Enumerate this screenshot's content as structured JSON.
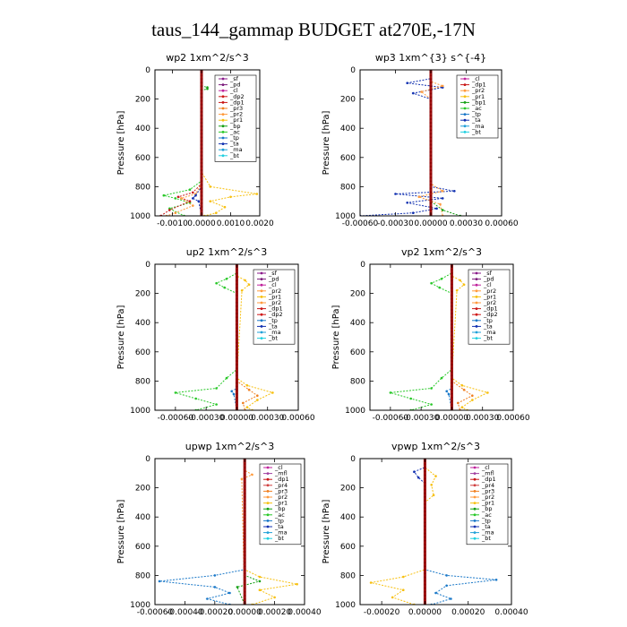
{
  "figure": {
    "title": "taus_144_gammap  BUDGET at270E,-17N"
  },
  "colors": {
    "sf": "#8a1a8a",
    "pd": "#7b1b7b",
    "cl": "#c0229c",
    "dp2": "#d01818",
    "dp1": "#c81616",
    "pr3": "#f07f20",
    "pr2": "#ff9a3c",
    "pr1": "#f7c010",
    "bp": "#14a014",
    "ac": "#28c828",
    "tp": "#1a78c8",
    "ta": "#1030b0",
    "ma": "#20a0d8",
    "bt": "#20d0e0",
    "mfl": "#a040a0",
    "pr4": "#d04040",
    "tot": "#8b0000"
  },
  "chart_data": [
    {
      "type": "line",
      "title": "wp2   1xm^2/s^3",
      "ylabel": "Pressure  [hPa]",
      "xlim": [
        -0.0016,
        0.002
      ],
      "ylim": [
        1000,
        0
      ],
      "xticks": [
        -0.001,
        0,
        0.001,
        0.002
      ],
      "xtick_labels": [
        "-0.0010",
        "0.0000",
        "0.0010",
        "0.0020"
      ],
      "yticks": [
        0,
        200,
        400,
        600,
        800,
        1000
      ],
      "ytick_labels": [
        "0",
        "200",
        "400",
        "600",
        "800",
        "1000"
      ],
      "legend_position": "top-right",
      "legend": [
        "_sf",
        "_pd",
        "_cl",
        "_dp2",
        "_dp1",
        "_pr3",
        "_pr2",
        "_pr1",
        "_bp",
        "_ac",
        "_tp",
        "_ta",
        "_ma",
        "_bt"
      ],
      "series": [
        {
          "key": "pr1",
          "pressure": [
            0,
            700,
            800,
            850,
            870,
            900,
            940,
            980,
            1000
          ],
          "values": [
            0,
            0,
            0.0003,
            0.0019,
            0.001,
            0.0003,
            0.0008,
            0.0005,
            0.0001
          ]
        },
        {
          "key": "ac",
          "pressure": [
            0,
            760,
            820,
            860,
            880,
            910,
            950,
            1000
          ],
          "values": [
            0,
            0,
            -0.0004,
            -0.0013,
            -0.0009,
            -0.0004,
            -0.0011,
            -0.0006
          ]
        },
        {
          "key": "dp1",
          "pressure": [
            0,
            780,
            840,
            870,
            900,
            960,
            1000
          ],
          "values": [
            0,
            0,
            -0.0003,
            -0.0008,
            -0.0004,
            -0.0011,
            -0.0014
          ]
        },
        {
          "key": "pr2",
          "pressure": [
            0,
            780,
            850,
            880,
            930,
            980,
            1000
          ],
          "values": [
            0,
            0,
            -0.0002,
            -0.0007,
            -0.0003,
            -0.0009,
            -0.0012
          ]
        },
        {
          "key": "ta",
          "pressure": [
            0,
            800,
            860,
            880,
            900,
            1000
          ],
          "values": [
            0,
            0,
            -0.0002,
            -0.0003,
            -0.0001,
            0
          ]
        },
        {
          "key": "bp",
          "pressure": [
            0,
            110,
            120,
            130,
            140,
            1000
          ],
          "values": [
            0,
            0,
            0.0002,
            0.0002,
            0,
            0
          ]
        },
        {
          "key": "tot",
          "pressure": [
            0,
            1000
          ],
          "values": [
            0,
            0
          ]
        }
      ]
    },
    {
      "type": "line",
      "title": "wp3   1xm^{3} s^{-4}",
      "ylabel": "Pressure  [hPa]",
      "xlim": [
        -0.0006,
        0.0006
      ],
      "ylim": [
        1000,
        0
      ],
      "xticks": [
        -0.0006,
        -0.0003,
        0,
        0.0003,
        0.0006
      ],
      "xtick_labels": [
        "-0.00060",
        "-0.00030",
        "0.00000",
        "0.00030",
        "0.00060"
      ],
      "yticks": [
        0,
        200,
        400,
        600,
        800,
        1000
      ],
      "ytick_labels": [
        "0",
        "200",
        "400",
        "600",
        "800",
        "1000"
      ],
      "legend_position": "top-right",
      "legend": [
        "_cl",
        "_dp1",
        "_pr2",
        "_pr1",
        "_bp1",
        "_ac",
        "_tp",
        "_ta",
        "_ma",
        "_bt"
      ],
      "series": [
        {
          "key": "ta",
          "pressure": [
            0,
            60,
            90,
            120,
            160,
            200,
            800,
            830,
            850,
            880,
            910,
            950,
            980,
            1000
          ],
          "values": [
            0,
            0,
            -0.0002,
            0.0001,
            -0.00015,
            0,
            0,
            0.0002,
            -0.0003,
            0.0001,
            -0.0002,
            5e-05,
            -0.00015,
            -0.0006
          ]
        },
        {
          "key": "pr2",
          "pressure": [
            0,
            80,
            110,
            150,
            200,
            780,
            830,
            870,
            920,
            1000
          ],
          "values": [
            0,
            0,
            0.0001,
            -8e-05,
            0,
            0,
            0.0001,
            -0.0001,
            8e-05,
            0.0001
          ]
        },
        {
          "key": "bp",
          "pressure": [
            0,
            900,
            960,
            1000
          ],
          "values": [
            0,
            0,
            0.0001,
            0.00025
          ]
        },
        {
          "key": "tot",
          "pressure": [
            0,
            1000
          ],
          "values": [
            0,
            0
          ]
        }
      ]
    },
    {
      "type": "line",
      "title": "up2   1xm^2/s^3",
      "ylabel": "Pressure  [hPa]",
      "xlim": [
        -0.0008,
        0.0006
      ],
      "ylim": [
        1000,
        0
      ],
      "xticks": [
        -0.0006,
        -0.0003,
        0,
        0.0003,
        0.0006
      ],
      "xtick_labels": [
        "-0.00060",
        "-0.00030",
        "0.00000",
        "0.00030",
        "0.00060"
      ],
      "yticks": [
        0,
        200,
        400,
        600,
        800,
        1000
      ],
      "ytick_labels": [
        "0",
        "200",
        "400",
        "600",
        "800",
        "1000"
      ],
      "legend_position": "top-right",
      "legend": [
        "_sf",
        "_pd",
        "_cl",
        "_pr2",
        "_pr1",
        "_pr2",
        "_dp1",
        "_dp2",
        "_tp",
        "_ta",
        "_ma",
        "_bt"
      ],
      "series": [
        {
          "key": "ac",
          "pressure": [
            0,
            60,
            100,
            130,
            160,
            200,
            720,
            780,
            850,
            880,
            920,
            960,
            1000
          ],
          "values": [
            0,
            0,
            -0.0001,
            -0.0002,
            -0.00012,
            0,
            0,
            -0.0001,
            -0.0002,
            -0.0006,
            -0.0004,
            -0.0002,
            -0.0004
          ]
        },
        {
          "key": "pr1",
          "pressure": [
            0,
            80,
            110,
            140,
            180,
            780,
            830,
            880,
            930,
            980,
            1000
          ],
          "values": [
            0,
            0,
            8e-05,
            0.00012,
            5e-05,
            0,
            0.0001,
            0.00035,
            0.0002,
            0.0001,
            0.00015
          ]
        },
        {
          "key": "pr3",
          "pressure": [
            0,
            800,
            860,
            900,
            950,
            1000
          ],
          "values": [
            0,
            0,
            0.00012,
            0.0002,
            6e-05,
            8e-05
          ]
        },
        {
          "key": "tp",
          "pressure": [
            0,
            850,
            870,
            890,
            1000
          ],
          "values": [
            0,
            0,
            -5e-05,
            -3e-05,
            0
          ]
        },
        {
          "key": "tot",
          "pressure": [
            0,
            1000
          ],
          "values": [
            0,
            0
          ]
        }
      ]
    },
    {
      "type": "line",
      "title": "vp2   1xm^2/s^3",
      "ylabel": "Pressure  [hPa]",
      "xlim": [
        -0.0008,
        0.0006
      ],
      "ylim": [
        1000,
        0
      ],
      "xticks": [
        -0.0006,
        -0.0003,
        0,
        0.0003,
        0.0006
      ],
      "xtick_labels": [
        "-0.00060",
        "-0.00030",
        "0.00000",
        "0.00030",
        "0.00060"
      ],
      "yticks": [
        0,
        200,
        400,
        600,
        800,
        1000
      ],
      "ytick_labels": [
        "0",
        "200",
        "400",
        "600",
        "800",
        "1000"
      ],
      "legend_position": "top-right",
      "legend": [
        "_sf",
        "_pd",
        "_cl",
        "_pr2",
        "_pr1",
        "_pr2",
        "_dp1",
        "_dp2",
        "_tp",
        "_ta",
        "_ma",
        "_bt"
      ],
      "series": [
        {
          "key": "ac",
          "pressure": [
            0,
            60,
            100,
            130,
            160,
            200,
            720,
            780,
            850,
            880,
            920,
            960,
            1000
          ],
          "values": [
            0,
            0,
            -0.0001,
            -0.0002,
            -0.00012,
            0,
            0,
            -0.0001,
            -0.0002,
            -0.0006,
            -0.0004,
            -0.0002,
            -0.0004
          ]
        },
        {
          "key": "pr1",
          "pressure": [
            0,
            80,
            110,
            140,
            180,
            780,
            830,
            880,
            930,
            980,
            1000
          ],
          "values": [
            0,
            0,
            8e-05,
            0.00012,
            5e-05,
            0,
            0.0001,
            0.00035,
            0.0002,
            0.0001,
            0.00015
          ]
        },
        {
          "key": "pr3",
          "pressure": [
            0,
            800,
            860,
            900,
            950,
            1000
          ],
          "values": [
            0,
            0,
            0.00012,
            0.0002,
            6e-05,
            8e-05
          ]
        },
        {
          "key": "tp",
          "pressure": [
            0,
            850,
            870,
            890,
            1000
          ],
          "values": [
            0,
            0,
            -5e-05,
            -3e-05,
            0
          ]
        },
        {
          "key": "tot",
          "pressure": [
            0,
            1000
          ],
          "values": [
            0,
            0
          ]
        }
      ]
    },
    {
      "type": "line",
      "title": "upwp   1xm^2/s^3",
      "ylabel": "Pressure  [hPa]",
      "xlim": [
        -0.0006,
        0.0004
      ],
      "ylim": [
        1000,
        0
      ],
      "xticks": [
        -0.0006,
        -0.0004,
        -0.0002,
        0,
        0.0002,
        0.0004
      ],
      "xtick_labels": [
        "-0.00060",
        "-0.00040",
        "-0.00020",
        "0.00000",
        "0.00020",
        "0.00040"
      ],
      "yticks": [
        0,
        200,
        400,
        600,
        800,
        1000
      ],
      "ytick_labels": [
        "0",
        "200",
        "400",
        "600",
        "800",
        "1000"
      ],
      "legend_position": "top-right",
      "legend": [
        "_cl",
        "_mfl",
        "_dp1",
        "_pr4",
        "_pr3",
        "_pr2",
        "_pr1",
        "_bp",
        "_ac",
        "_tp",
        "_ta",
        "_ma",
        "_bt"
      ],
      "series": [
        {
          "key": "tp",
          "pressure": [
            0,
            760,
            800,
            840,
            880,
            920,
            960,
            1000
          ],
          "values": [
            0,
            0,
            -0.0002,
            -0.00057,
            -0.0002,
            -0.0001,
            -0.00025,
            -0.0001
          ]
        },
        {
          "key": "pr1",
          "pressure": [
            0,
            760,
            810,
            860,
            900,
            950,
            1000
          ],
          "values": [
            0,
            0,
            0.0001,
            0.00035,
            0.0001,
            0.0002,
            5e-05
          ]
        },
        {
          "key": "bp",
          "pressure": [
            0,
            800,
            840,
            880,
            1000
          ],
          "values": [
            0,
            0,
            0.0001,
            -5e-05,
            0
          ]
        },
        {
          "key": "pr2",
          "pressure": [
            0,
            80,
            110,
            140,
            1000
          ],
          "values": [
            0,
            0,
            5e-05,
            -2e-05,
            0
          ]
        },
        {
          "key": "tot",
          "pressure": [
            0,
            1000
          ],
          "values": [
            0,
            0
          ]
        }
      ]
    },
    {
      "type": "line",
      "title": "vpwp   1xm^2/s^3",
      "ylabel": "Pressure  [hPa]",
      "xlim": [
        -0.0003,
        0.0004
      ],
      "ylim": [
        1000,
        0
      ],
      "xticks": [
        -0.0002,
        0,
        0.0002,
        0.0004
      ],
      "xtick_labels": [
        "-0.00020",
        "0.00000",
        "0.00020",
        "0.00040"
      ],
      "yticks": [
        0,
        200,
        400,
        600,
        800,
        1000
      ],
      "ytick_labels": [
        "0",
        "200",
        "400",
        "600",
        "800",
        "1000"
      ],
      "legend_position": "top-right",
      "legend": [
        "_cl",
        "_mfl",
        "_dp1",
        "_pr4",
        "_pr3",
        "_pr2",
        "_pr1",
        "_bp",
        "_ac",
        "_tp",
        "_ta",
        "_ma",
        "_bt"
      ],
      "series": [
        {
          "key": "tp",
          "pressure": [
            0,
            760,
            800,
            830,
            870,
            920,
            960,
            1000
          ],
          "values": [
            0,
            0,
            0.0001,
            0.00033,
            0.0001,
            5e-05,
            0.00012,
            3e-05
          ]
        },
        {
          "key": "pr1",
          "pressure": [
            0,
            60,
            120,
            180,
            250,
            300,
            760,
            810,
            850,
            900,
            950,
            1000
          ],
          "values": [
            0,
            0,
            5e-05,
            3e-05,
            4e-05,
            0,
            0,
            -0.0001,
            -0.00025,
            -0.0001,
            -0.00015,
            -5e-05
          ]
        },
        {
          "key": "ta",
          "pressure": [
            0,
            60,
            90,
            130,
            170,
            1000
          ],
          "values": [
            0,
            0,
            -5e-05,
            -3e-05,
            0,
            0
          ]
        },
        {
          "key": "tot",
          "pressure": [
            0,
            1000
          ],
          "values": [
            0,
            0
          ]
        }
      ]
    }
  ]
}
